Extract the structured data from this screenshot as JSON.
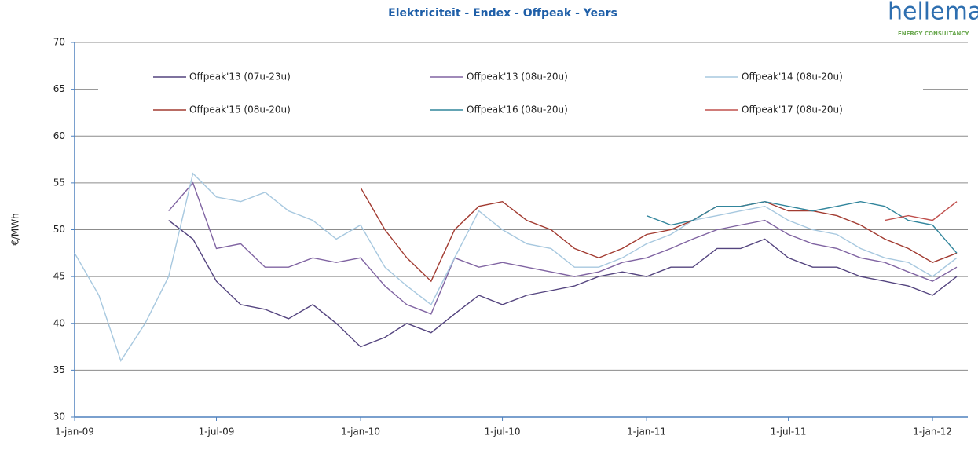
{
  "chart_data": {
    "type": "line",
    "title": "Elektriciteit - Endex - Offpeak - Years",
    "ylabel": "€/MWh",
    "logo": "hellemar",
    "logo_subtitle": "ENERGY CONSULTANCY",
    "x": [
      "2009-01-01",
      "2009-02-01",
      "2009-03-01",
      "2009-04-01",
      "2009-05-01",
      "2009-06-01",
      "2009-07-01",
      "2009-08-01",
      "2009-09-01",
      "2009-10-01",
      "2009-11-01",
      "2009-12-01",
      "2010-01-01",
      "2010-02-01",
      "2010-03-01",
      "2010-04-01",
      "2010-05-01",
      "2010-06-01",
      "2010-07-01",
      "2010-08-01",
      "2010-09-01",
      "2010-10-01",
      "2010-11-01",
      "2010-12-01",
      "2011-01-01",
      "2011-02-01",
      "2011-03-01",
      "2011-04-01",
      "2011-05-01",
      "2011-06-01",
      "2011-07-01",
      "2011-08-01",
      "2011-09-01",
      "2011-10-01",
      "2011-11-01",
      "2011-12-01",
      "2012-01-01",
      "2012-02-01"
    ],
    "series": [
      {
        "name": "Offpeak'13 (07u-23u)",
        "color": "#54447f",
        "values": [
          null,
          null,
          null,
          null,
          51,
          49,
          44.5,
          42,
          41.5,
          40.5,
          42,
          40,
          37.5,
          38.5,
          40,
          39,
          41,
          43,
          42,
          43,
          43.5,
          44,
          45,
          45.5,
          45,
          46,
          46,
          48,
          48,
          49,
          47,
          46,
          46,
          45,
          44.5,
          44,
          43,
          45
        ]
      },
      {
        "name": "Offpeak'13 (08u-20u)",
        "color": "#8064a2",
        "values": [
          null,
          null,
          null,
          null,
          52,
          55,
          48,
          48.5,
          46,
          46,
          47,
          46.5,
          47,
          44,
          42,
          41,
          47,
          46,
          46.5,
          46,
          45.5,
          45,
          45.5,
          46.5,
          47,
          48,
          49,
          50,
          50.5,
          51,
          49.5,
          48.5,
          48,
          47,
          46.5,
          45.5,
          44.5,
          46
        ]
      },
      {
        "name": "Offpeak'14 (08u-20u)",
        "color": "#a7c8df",
        "values": [
          47.5,
          43,
          36,
          40,
          45,
          56,
          53.5,
          53,
          54,
          52,
          51,
          49,
          50.5,
          46,
          44,
          42,
          47,
          52,
          50,
          48.5,
          48,
          46,
          46,
          47,
          48.5,
          49.5,
          51,
          51.5,
          52,
          52.5,
          51,
          50,
          49.5,
          48,
          47,
          46.5,
          45,
          47
        ]
      },
      {
        "name": "Offpeak'15 (08u-20u)",
        "color": "#a23b31",
        "values": [
          null,
          null,
          null,
          null,
          null,
          null,
          null,
          null,
          null,
          null,
          null,
          null,
          54.5,
          50,
          47,
          44.5,
          50,
          52.5,
          53,
          51,
          50,
          48,
          47,
          48,
          49.5,
          50,
          51,
          52.5,
          52.5,
          53,
          52,
          52,
          51.5,
          50.5,
          49,
          48,
          46.5,
          47.5
        ]
      },
      {
        "name": "Offpeak'16 (08u-20u)",
        "color": "#31859c",
        "values": [
          null,
          null,
          null,
          null,
          null,
          null,
          null,
          null,
          null,
          null,
          null,
          null,
          null,
          null,
          null,
          null,
          null,
          null,
          null,
          null,
          null,
          null,
          null,
          null,
          51.5,
          50.5,
          51,
          52.5,
          52.5,
          53,
          52.5,
          52,
          52.5,
          53,
          52.5,
          51,
          50.5,
          47.5
        ]
      },
      {
        "name": "Offpeak'17 (08u-20u)",
        "color": "#c0504d",
        "values": [
          null,
          null,
          null,
          null,
          null,
          null,
          null,
          null,
          null,
          null,
          null,
          null,
          null,
          null,
          null,
          null,
          null,
          null,
          null,
          null,
          null,
          null,
          null,
          null,
          null,
          null,
          null,
          null,
          null,
          null,
          null,
          null,
          null,
          null,
          51,
          51.5,
          51,
          53
        ]
      }
    ],
    "xlim": [
      "2009-01-01",
      "2012-02-15"
    ],
    "xticks": [
      {
        "value": "2009-01-01",
        "label": "1-jan-09"
      },
      {
        "value": "2009-07-01",
        "label": "1-jul-09"
      },
      {
        "value": "2010-01-01",
        "label": "1-jan-10"
      },
      {
        "value": "2010-07-01",
        "label": "1-jul-10"
      },
      {
        "value": "2011-01-01",
        "label": "1-jan-11"
      },
      {
        "value": "2011-07-01",
        "label": "1-jul-11"
      },
      {
        "value": "2012-01-01",
        "label": "1-jan-12"
      }
    ],
    "ylim": [
      30,
      70
    ],
    "yticks": [
      30,
      35,
      40,
      45,
      50,
      55,
      60,
      65,
      70
    ],
    "grid": true,
    "legend": "top"
  }
}
